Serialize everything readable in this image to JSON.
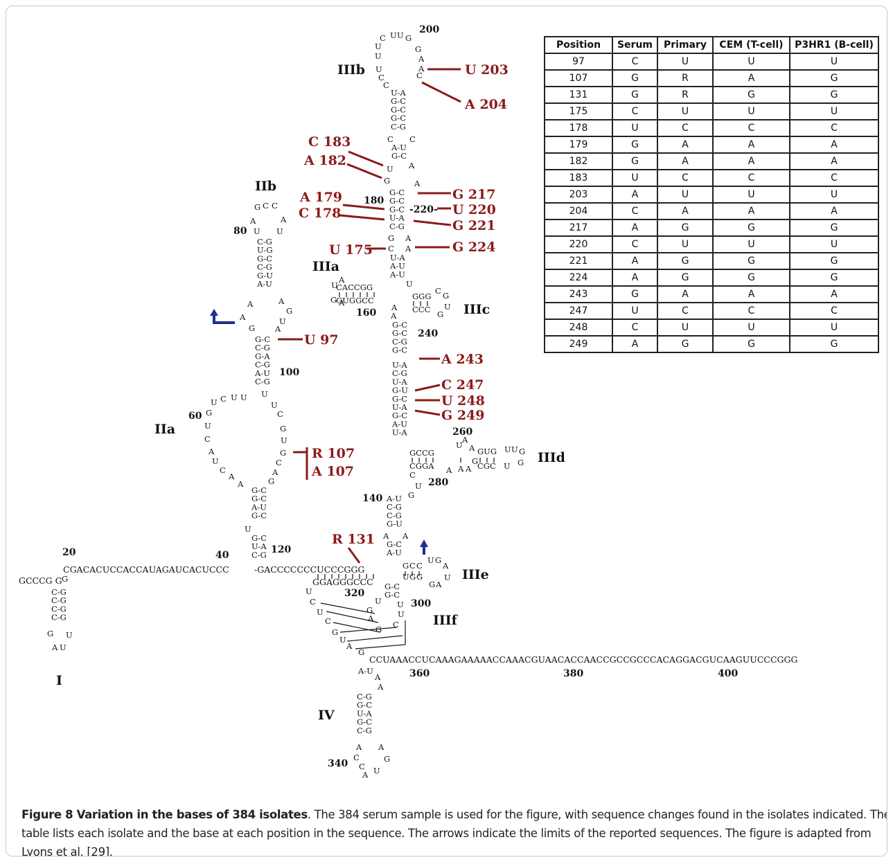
{
  "table": {
    "headers": [
      "Position",
      "Serum",
      "Primary",
      "CEM (T-cell)",
      "P3HR1 (B-cell)"
    ],
    "rows": [
      [
        "97",
        "C",
        "U",
        "U",
        "U"
      ],
      [
        "107",
        "G",
        "R",
        "A",
        "G"
      ],
      [
        "131",
        "G",
        "R",
        "G",
        "G"
      ],
      [
        "175",
        "C",
        "U",
        "U",
        "U"
      ],
      [
        "178",
        "U",
        "C",
        "C",
        "C"
      ],
      [
        "179",
        "G",
        "A",
        "A",
        "A"
      ],
      [
        "182",
        "G",
        "A",
        "A",
        "A"
      ],
      [
        "183",
        "U",
        "C",
        "C",
        "C"
      ],
      [
        "203",
        "A",
        "U",
        "U",
        "U"
      ],
      [
        "204",
        "C",
        "A",
        "A",
        "A"
      ],
      [
        "217",
        "A",
        "G",
        "G",
        "G"
      ],
      [
        "220",
        "C",
        "U",
        "U",
        "U"
      ],
      [
        "221",
        "A",
        "G",
        "G",
        "G"
      ],
      [
        "224",
        "A",
        "G",
        "G",
        "G"
      ],
      [
        "243",
        "G",
        "A",
        "A",
        "A"
      ],
      [
        "247",
        "U",
        "C",
        "C",
        "C"
      ],
      [
        "248",
        "C",
        "U",
        "U",
        "U"
      ],
      [
        "249",
        "A",
        "G",
        "G",
        "G"
      ]
    ]
  },
  "domains": [
    "I",
    "IIa",
    "IIb",
    "IIIa",
    "IIIb",
    "IIIc",
    "IIId",
    "IIIe",
    "IIIf",
    "IV"
  ],
  "mutations": {
    "m203": "U 203",
    "m204": "A 204",
    "m183": "C 183",
    "m182": "A 182",
    "m179": "A 179",
    "m178": "C 178",
    "m175": "U 175",
    "m217": "G 217",
    "m220": "U 220",
    "m221": "G 221",
    "m224": "G 224",
    "m97": "U 97",
    "m107r": "R 107",
    "m107a": "A 107",
    "m131": "R 131",
    "m243": "A 243",
    "m247": "C 247",
    "m248": "U 248",
    "m249": "G 249"
  },
  "positions": {
    "p20": "20",
    "p40": "40",
    "p60": "60",
    "p80": "80",
    "p100": "100",
    "p120": "120",
    "p140": "140",
    "p160": "160",
    "p180": "180",
    "p200": "200",
    "p220": "-220-",
    "p240": "240",
    "p260": "260",
    "p280": "280",
    "p300": "300",
    "p320": "320",
    "p340": "340",
    "p360": "360",
    "p380": "380",
    "p400": "400"
  },
  "sequences": {
    "main5": "CGACACUCCACCAUAGAUCACUCCC",
    "main5b": "-GACCCCCCCUCCCGGG",
    "under3": "GGAGGGCCC",
    "gcccg": "GCCCG G",
    "long3": "CCUAAACCUCAAAGAAAAACCAAACGUAACACCAACCGCCGCCCACAGGACGUCAAGUUCCCGGG",
    "iiia_top": "CACCGG",
    "iiia_bot": "GUGGCC",
    "iiic_top": "GGG",
    "iiic_bot": "CCC",
    "iiid_top": "GCCG",
    "iiid_bot": "CGGA",
    "iiid_top2": "GUG",
    "iiid_bot2": "CGC"
  },
  "caption": {
    "bold": "Figure 8 Variation in the bases of 384 isolates",
    "text": ". The 384 serum sample is used for the figure, with sequence changes found in the isolates indicated. The table lists each isolate and the base at each position in the sequence. The arrows indicate the limits of the reported sequences. The figure is adapted from Lyons et al. [29]."
  }
}
